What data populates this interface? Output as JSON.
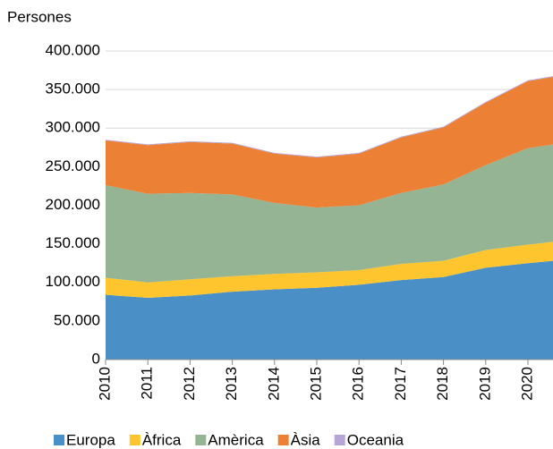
{
  "chart_data": {
    "type": "stacked_area",
    "y_label": "Persones",
    "categories": [
      "2010",
      "2011",
      "2012",
      "2013",
      "2014",
      "2015",
      "2016",
      "2017",
      "2018",
      "2019",
      "2020",
      null
    ],
    "series": [
      {
        "name": "Europa",
        "color": "#4a8fc6",
        "values": [
          84000,
          80000,
          83000,
          88000,
          91000,
          93000,
          97000,
          103000,
          107000,
          119000,
          125000,
          130000
        ]
      },
      {
        "name": "Àfrica",
        "color": "#ffc52e",
        "values": [
          22000,
          20000,
          21000,
          20000,
          20000,
          20000,
          19000,
          21000,
          21000,
          23000,
          24000,
          25000
        ]
      },
      {
        "name": "Amèrica",
        "color": "#95b493",
        "values": [
          120000,
          115000,
          112000,
          106000,
          92000,
          84000,
          84000,
          92000,
          99000,
          110000,
          125000,
          127000
        ]
      },
      {
        "name": "Àsia",
        "color": "#ec8136",
        "values": [
          58000,
          63000,
          66000,
          66000,
          64000,
          65000,
          67000,
          72000,
          74000,
          81000,
          87000,
          88000
        ]
      },
      {
        "name": "Oceania",
        "color": "#b6a6d8",
        "values": [
          1000,
          1000,
          1000,
          1000,
          1000,
          1000,
          1000,
          1000,
          1000,
          1000,
          1000,
          1000
        ]
      }
    ],
    "ylim": [
      0,
      400000
    ],
    "yticks": [
      0,
      {
        "value": 50000,
        "label": "50.000"
      },
      {
        "value": 100000,
        "label": "100.000"
      },
      {
        "value": 150000,
        "label": "150.000"
      },
      {
        "value": 200000,
        "label": "200.000"
      },
      {
        "value": 250000,
        "label": "250.000"
      },
      {
        "value": 300000,
        "label": "300.000"
      },
      {
        "value": 350000,
        "label": "350.000"
      },
      {
        "value": 400000,
        "label": "400.000"
      }
    ],
    "grid": true,
    "legend": "bottom"
  }
}
